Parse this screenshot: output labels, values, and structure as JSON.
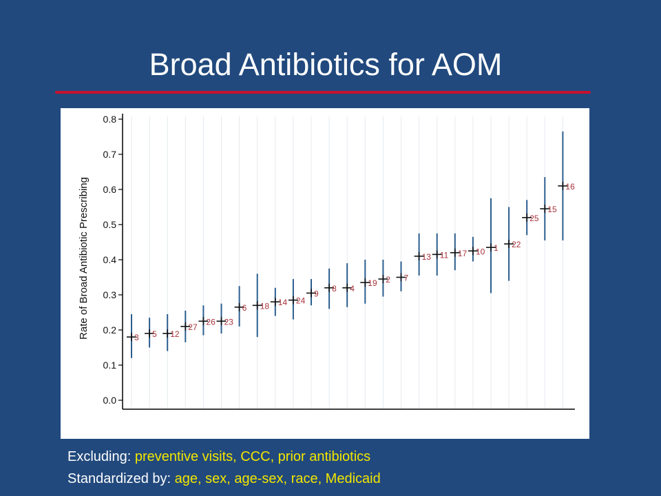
{
  "slide": {
    "title": "Broad Antibiotics for AOM",
    "captions": [
      {
        "label": "Excluding:",
        "value": "preventive visits, CCC, prior antibiotics"
      },
      {
        "label": "Standardized by:",
        "value": "age, sex, age-sex, race, Medicaid"
      }
    ]
  },
  "colors": {
    "background": "#21497d",
    "title_rule": "#c8102e",
    "error_bar": "#2a5d8f",
    "point_label": "#a8323b",
    "caption_value": "#f2e600"
  },
  "chart_data": {
    "type": "scatter",
    "ylabel": "Rate of Broad Antibiotic Prescribing",
    "xlabel": "",
    "ylim": [
      0,
      0.8
    ],
    "yticks": [
      "0.0",
      "0.1",
      "0.2",
      "0.3",
      "0.4",
      "0.5",
      "0.6",
      "0.7",
      "0.8"
    ],
    "grid": "vertical lines at each point",
    "points": [
      {
        "label": "3",
        "rate": 0.18,
        "low": 0.12,
        "high": 0.245
      },
      {
        "label": "5",
        "rate": 0.19,
        "low": 0.15,
        "high": 0.235
      },
      {
        "label": "12",
        "rate": 0.19,
        "low": 0.14,
        "high": 0.245
      },
      {
        "label": "27",
        "rate": 0.21,
        "low": 0.165,
        "high": 0.255
      },
      {
        "label": "26",
        "rate": 0.225,
        "low": 0.185,
        "high": 0.27
      },
      {
        "label": "23",
        "rate": 0.225,
        "low": 0.19,
        "high": 0.275
      },
      {
        "label": "6",
        "rate": 0.265,
        "low": 0.21,
        "high": 0.325
      },
      {
        "label": "18",
        "rate": 0.27,
        "low": 0.18,
        "high": 0.36
      },
      {
        "label": "14",
        "rate": 0.28,
        "low": 0.24,
        "high": 0.32
      },
      {
        "label": "24",
        "rate": 0.285,
        "low": 0.23,
        "high": 0.345
      },
      {
        "label": "9",
        "rate": 0.305,
        "low": 0.27,
        "high": 0.345
      },
      {
        "label": "8",
        "rate": 0.32,
        "low": 0.26,
        "high": 0.375
      },
      {
        "label": "4",
        "rate": 0.32,
        "low": 0.265,
        "high": 0.39
      },
      {
        "label": "19",
        "rate": 0.335,
        "low": 0.275,
        "high": 0.4
      },
      {
        "label": "2",
        "rate": 0.345,
        "low": 0.295,
        "high": 0.4
      },
      {
        "label": "7",
        "rate": 0.35,
        "low": 0.31,
        "high": 0.395
      },
      {
        "label": "13",
        "rate": 0.41,
        "low": 0.355,
        "high": 0.475
      },
      {
        "label": "11",
        "rate": 0.415,
        "low": 0.355,
        "high": 0.475
      },
      {
        "label": "17",
        "rate": 0.42,
        "low": 0.37,
        "high": 0.475
      },
      {
        "label": "10",
        "rate": 0.425,
        "low": 0.395,
        "high": 0.465
      },
      {
        "label": "1",
        "rate": 0.435,
        "low": 0.305,
        "high": 0.575
      },
      {
        "label": "22",
        "rate": 0.445,
        "low": 0.34,
        "high": 0.55
      },
      {
        "label": "25",
        "rate": 0.52,
        "low": 0.47,
        "high": 0.57
      },
      {
        "label": "15",
        "rate": 0.545,
        "low": 0.455,
        "high": 0.635
      },
      {
        "label": "16",
        "rate": 0.61,
        "low": 0.455,
        "high": 0.765
      }
    ]
  }
}
